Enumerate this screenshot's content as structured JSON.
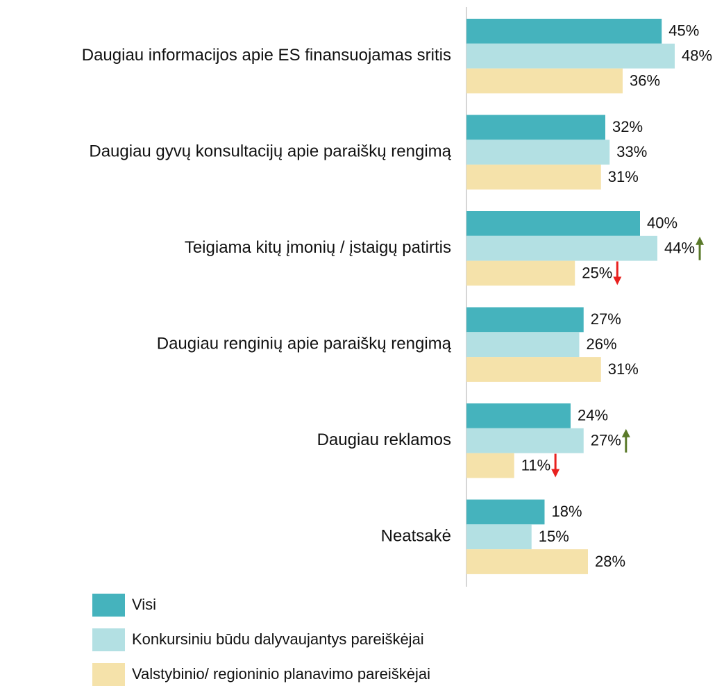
{
  "chart_data": {
    "type": "hbar",
    "categories": [
      "Daugiau informacijos apie ES finansuojamas sritis",
      "Daugiau gyvų konsultacijų apie paraiškų rengimą",
      "Teigiama kitų įmonių / įstaigų patirtis",
      "Daugiau renginių apie paraiškų rengimą",
      "Daugiau reklamos",
      "Neatsakė"
    ],
    "series": [
      {
        "name": "Visi",
        "color": "#45b3bd",
        "values": [
          45,
          32,
          40,
          27,
          24,
          18
        ],
        "value_labels": [
          "45%",
          "32%",
          "40%",
          "27%",
          "24%",
          "18%"
        ],
        "arrows": [
          null,
          null,
          null,
          null,
          null,
          null
        ]
      },
      {
        "name": "Konkursiniu būdu dalyvaujantys pareiškėjai",
        "color": "#b3e0e3",
        "values": [
          48,
          33,
          44,
          26,
          27,
          15
        ],
        "value_labels": [
          "48%",
          "33%",
          "44%",
          "26%",
          "27%",
          "15%"
        ],
        "arrows": [
          null,
          null,
          "up",
          null,
          "up",
          null
        ]
      },
      {
        "name": "Valstybinio/ regioninio planavimo pareiškėjai",
        "color": "#f5e2aa",
        "values": [
          36,
          31,
          25,
          31,
          11,
          28
        ],
        "value_labels": [
          "36%",
          "31%",
          "25%",
          "31%",
          "11%",
          "28%"
        ],
        "arrows": [
          null,
          null,
          "down",
          null,
          "down",
          null
        ]
      }
    ],
    "arrow_colors": {
      "up": "#5a7a2a",
      "down": "#e8201e"
    }
  }
}
